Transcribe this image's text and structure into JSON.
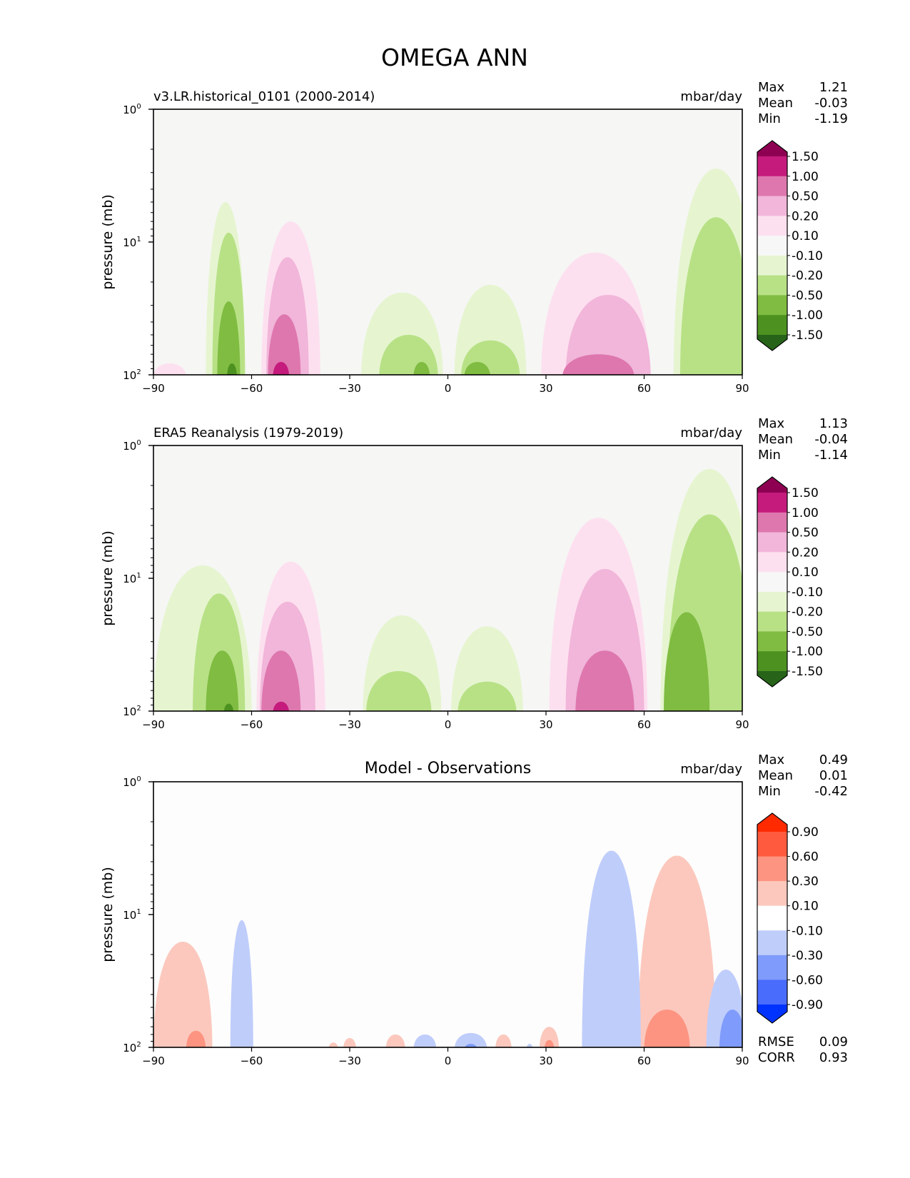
{
  "figure_title": "OMEGA ANN",
  "chart_data": [
    {
      "type": "heatmap",
      "subtype": "filled-contour",
      "panel": "model",
      "title_left": "v3.LR.historical_0101 (2000-2014)",
      "title_right": "mbar/day",
      "xlabel": "",
      "ylabel": "pressure (mb)",
      "xlim": [
        -90,
        90
      ],
      "ylim": [
        100,
        1
      ],
      "yscale": "log",
      "xticks": [
        -90,
        -60,
        -30,
        0,
        30,
        60,
        90
      ],
      "xtick_labels": [
        "−90",
        "−60",
        "−30",
        "0",
        "30",
        "60",
        "90"
      ],
      "yticks": [
        1,
        10,
        100
      ],
      "ytick_labels": [
        [
          "10",
          "0"
        ],
        [
          "10",
          "1"
        ],
        [
          "10",
          "2"
        ]
      ],
      "stats": [
        {
          "label": "Max",
          "value": "1.21"
        },
        {
          "label": "Mean",
          "value": "-0.03"
        },
        {
          "label": "Min",
          "value": "-1.19"
        }
      ],
      "background_color": "#f6f6f5",
      "colorbar": {
        "extend": "both",
        "levels": [
          "1.50",
          "1.00",
          "0.50",
          "0.20",
          "0.10",
          "-0.10",
          "-0.20",
          "-0.50",
          "-1.00",
          "-1.50"
        ],
        "colors": [
          "#8e0152",
          "#c51b7d",
          "#de77ae",
          "#f1b6da",
          "#fde0ef",
          "#f7f7f7",
          "#e6f5d0",
          "#b8e186",
          "#7fbc41",
          "#4d9221",
          "#276419"
        ]
      },
      "regions": [
        {
          "band": "-0.20",
          "color": "#e6f5d0",
          "center_lat": -68,
          "width_deg": 12,
          "top_pressure": 5
        },
        {
          "band": "-0.50",
          "color": "#b8e186",
          "center_lat": -67,
          "width_deg": 10,
          "top_pressure": 8.5
        },
        {
          "band": "-1.00",
          "color": "#7fbc41",
          "center_lat": -67,
          "width_deg": 7,
          "top_pressure": 28
        },
        {
          "band": "-1.50",
          "color": "#4d9221",
          "center_lat": -66,
          "width_deg": 3,
          "top_pressure": 82
        },
        {
          "band": "0.20",
          "color": "#fde0ef",
          "center_lat": -48,
          "width_deg": 18,
          "top_pressure": 7
        },
        {
          "band": "0.50",
          "color": "#f1b6da",
          "center_lat": -49,
          "width_deg": 13,
          "top_pressure": 13
        },
        {
          "band": "1.00",
          "color": "#de77ae",
          "center_lat": -50,
          "width_deg": 10,
          "top_pressure": 35
        },
        {
          "band": "1.50",
          "color": "#c51b7d",
          "center_lat": -51,
          "width_deg": 5,
          "top_pressure": 80
        },
        {
          "band": "0.20",
          "color": "#fde0ef",
          "center_lat": -85,
          "width_deg": 10,
          "top_pressure": 82
        },
        {
          "band": "-0.20",
          "color": "#e6f5d0",
          "center_lat": -14,
          "width_deg": 25,
          "top_pressure": 24
        },
        {
          "band": "-0.50",
          "color": "#b8e186",
          "center_lat": -12,
          "width_deg": 18,
          "top_pressure": 50
        },
        {
          "band": "-1.00",
          "color": "#7fbc41",
          "center_lat": -8,
          "width_deg": 5,
          "top_pressure": 80
        },
        {
          "band": "-0.20",
          "color": "#e6f5d0",
          "center_lat": 13,
          "width_deg": 22,
          "top_pressure": 21
        },
        {
          "band": "-0.50",
          "color": "#b8e186",
          "center_lat": 13,
          "width_deg": 18,
          "top_pressure": 55
        },
        {
          "band": "-1.00",
          "color": "#7fbc41",
          "center_lat": 9,
          "width_deg": 8,
          "top_pressure": 80
        },
        {
          "band": "0.20",
          "color": "#fde0ef",
          "center_lat": 45,
          "width_deg": 33,
          "top_pressure": 12
        },
        {
          "band": "0.50",
          "color": "#f1b6da",
          "center_lat": 49,
          "width_deg": 26,
          "top_pressure": 25
        },
        {
          "band": "1.00",
          "color": "#de77ae",
          "center_lat": 46,
          "width_deg": 22,
          "top_pressure": 70
        },
        {
          "band": "-0.20",
          "color": "#e6f5d0",
          "center_lat": 82,
          "width_deg": 26,
          "top_pressure": 2.8
        },
        {
          "band": "-0.50",
          "color": "#b8e186",
          "center_lat": 82,
          "width_deg": 22,
          "top_pressure": 6.5
        }
      ]
    },
    {
      "type": "heatmap",
      "subtype": "filled-contour",
      "panel": "observations",
      "title_left": "ERA5 Reanalysis (1979-2019)",
      "title_right": "mbar/day",
      "xlabel": "",
      "ylabel": "pressure (mb)",
      "xlim": [
        -90,
        90
      ],
      "ylim": [
        100,
        1
      ],
      "yscale": "log",
      "xticks": [
        -90,
        -60,
        -30,
        0,
        30,
        60,
        90
      ],
      "xtick_labels": [
        "−90",
        "−60",
        "−30",
        "0",
        "30",
        "60",
        "90"
      ],
      "yticks": [
        1,
        10,
        100
      ],
      "ytick_labels": [
        [
          "10",
          "0"
        ],
        [
          "10",
          "1"
        ],
        [
          "10",
          "2"
        ]
      ],
      "stats": [
        {
          "label": "Max",
          "value": "1.13"
        },
        {
          "label": "Mean",
          "value": "-0.04"
        },
        {
          "label": "Min",
          "value": "-1.14"
        }
      ],
      "background_color": "#f6f6f5",
      "colorbar": {
        "extend": "both",
        "levels": [
          "1.50",
          "1.00",
          "0.50",
          "0.20",
          "0.10",
          "-0.10",
          "-0.20",
          "-0.50",
          "-1.00",
          "-1.50"
        ],
        "colors": [
          "#8e0152",
          "#c51b7d",
          "#de77ae",
          "#f1b6da",
          "#fde0ef",
          "#f7f7f7",
          "#e6f5d0",
          "#b8e186",
          "#7fbc41",
          "#4d9221",
          "#276419"
        ]
      },
      "regions": [
        {
          "band": "-0.20",
          "color": "#e6f5d0",
          "center_lat": -75,
          "width_deg": 30,
          "top_pressure": 8
        },
        {
          "band": "-0.50",
          "color": "#b8e186",
          "center_lat": -70,
          "width_deg": 16,
          "top_pressure": 13
        },
        {
          "band": "-1.00",
          "color": "#7fbc41",
          "center_lat": -69,
          "width_deg": 10,
          "top_pressure": 35
        },
        {
          "band": "-1.50",
          "color": "#4d9221",
          "center_lat": -67,
          "width_deg": 3,
          "top_pressure": 88
        },
        {
          "band": "0.20",
          "color": "#fde0ef",
          "center_lat": -48,
          "width_deg": 21,
          "top_pressure": 7.5
        },
        {
          "band": "0.50",
          "color": "#f1b6da",
          "center_lat": -49,
          "width_deg": 17,
          "top_pressure": 15
        },
        {
          "band": "1.00",
          "color": "#de77ae",
          "center_lat": -51,
          "width_deg": 12,
          "top_pressure": 35
        },
        {
          "band": "1.50",
          "color": "#c51b7d",
          "center_lat": -51,
          "width_deg": 5,
          "top_pressure": 85
        },
        {
          "band": "-0.20",
          "color": "#e6f5d0",
          "center_lat": -14,
          "width_deg": 24,
          "top_pressure": 19
        },
        {
          "band": "-0.50",
          "color": "#b8e186",
          "center_lat": -15,
          "width_deg": 20,
          "top_pressure": 50
        },
        {
          "band": "-0.20",
          "color": "#e6f5d0",
          "center_lat": 12,
          "width_deg": 22,
          "top_pressure": 23
        },
        {
          "band": "-0.50",
          "color": "#b8e186",
          "center_lat": 12,
          "width_deg": 18,
          "top_pressure": 60
        },
        {
          "band": "0.20",
          "color": "#fde0ef",
          "center_lat": 46,
          "width_deg": 30,
          "top_pressure": 3.5
        },
        {
          "band": "0.50",
          "color": "#f1b6da",
          "center_lat": 48,
          "width_deg": 24,
          "top_pressure": 8.5
        },
        {
          "band": "1.00",
          "color": "#de77ae",
          "center_lat": 48,
          "width_deg": 18,
          "top_pressure": 35
        },
        {
          "band": "-0.20",
          "color": "#e6f5d0",
          "center_lat": 80,
          "width_deg": 30,
          "top_pressure": 1.5
        },
        {
          "band": "-0.50",
          "color": "#b8e186",
          "center_lat": 80,
          "width_deg": 26,
          "top_pressure": 3.3
        },
        {
          "band": "-1.00",
          "color": "#7fbc41",
          "center_lat": 73,
          "width_deg": 14,
          "top_pressure": 18
        }
      ]
    },
    {
      "type": "heatmap",
      "subtype": "filled-contour",
      "panel": "difference",
      "title_center": "Model - Observations",
      "title_right": "mbar/day",
      "xlabel": "",
      "ylabel": "pressure (mb)",
      "xlim": [
        -90,
        90
      ],
      "ylim": [
        100,
        1
      ],
      "yscale": "log",
      "xticks": [
        -90,
        -60,
        -30,
        0,
        30,
        60,
        90
      ],
      "xtick_labels": [
        "−90",
        "−60",
        "−30",
        "0",
        "30",
        "60",
        "90"
      ],
      "yticks": [
        1,
        10,
        100
      ],
      "ytick_labels": [
        [
          "10",
          "0"
        ],
        [
          "10",
          "1"
        ],
        [
          "10",
          "2"
        ]
      ],
      "stats": [
        {
          "label": "Max",
          "value": "0.49"
        },
        {
          "label": "Mean",
          "value": "0.01"
        },
        {
          "label": "Min",
          "value": "-0.42"
        }
      ],
      "metrics": [
        {
          "label": "RMSE",
          "value": "0.09"
        },
        {
          "label": "CORR",
          "value": "0.93"
        }
      ],
      "background_color": "#fdfdfd",
      "colorbar": {
        "extend": "both",
        "levels": [
          "0.90",
          "0.60",
          "0.30",
          "0.10",
          "-0.10",
          "-0.30",
          "-0.60",
          "-0.90"
        ],
        "colors": [
          "#ff2a00",
          "#ff5a3d",
          "#fc9481",
          "#fcc8bd",
          "#ffffff",
          "#bfcdfb",
          "#7f9bfb",
          "#4a6cfc",
          "#0033ff"
        ]
      },
      "regions": [
        {
          "band": "0.10",
          "color": "#fcc8bd",
          "center_lat": -81,
          "width_deg": 18,
          "top_pressure": 16
        },
        {
          "band": "0.30",
          "color": "#fc9481",
          "center_lat": -77,
          "width_deg": 6,
          "top_pressure": 75
        },
        {
          "band": "-0.10",
          "color": "#bfcdfb",
          "center_lat": -63,
          "width_deg": 7,
          "top_pressure": 11
        },
        {
          "band": "0.10",
          "color": "#fcc8bd",
          "center_lat": 70,
          "width_deg": 24,
          "top_pressure": 3.6
        },
        {
          "band": "0.30",
          "color": "#fc9481",
          "center_lat": 67,
          "width_deg": 14,
          "top_pressure": 52
        },
        {
          "band": "-0.10",
          "color": "#bfcdfb",
          "center_lat": 50,
          "width_deg": 18,
          "top_pressure": 3.3
        },
        {
          "band": "-0.10",
          "color": "#bfcdfb",
          "center_lat": 85,
          "width_deg": 12,
          "top_pressure": 26
        },
        {
          "band": "-0.30",
          "color": "#7f9bfb",
          "center_lat": 87,
          "width_deg": 8,
          "top_pressure": 52
        },
        {
          "band": "0.10",
          "color": "#fcc8bd",
          "center_lat": -35,
          "width_deg": 3,
          "top_pressure": 92
        },
        {
          "band": "0.10",
          "color": "#fcc8bd",
          "center_lat": -30,
          "width_deg": 4,
          "top_pressure": 85
        },
        {
          "band": "0.10",
          "color": "#fcc8bd",
          "center_lat": -16,
          "width_deg": 6,
          "top_pressure": 80
        },
        {
          "band": "-0.10",
          "color": "#bfcdfb",
          "center_lat": -7,
          "width_deg": 7,
          "top_pressure": 80
        },
        {
          "band": "-0.10",
          "color": "#bfcdfb",
          "center_lat": 7,
          "width_deg": 10,
          "top_pressure": 78
        },
        {
          "band": "-0.30",
          "color": "#7f9bfb",
          "center_lat": 7,
          "width_deg": 4,
          "top_pressure": 94
        },
        {
          "band": "0.10",
          "color": "#fcc8bd",
          "center_lat": 17,
          "width_deg": 5,
          "top_pressure": 80
        },
        {
          "band": "-0.10",
          "color": "#bfcdfb",
          "center_lat": 25,
          "width_deg": 2,
          "top_pressure": 94
        },
        {
          "band": "0.10",
          "color": "#fcc8bd",
          "center_lat": 31,
          "width_deg": 6,
          "top_pressure": 70
        },
        {
          "band": "0.30",
          "color": "#fc9481",
          "center_lat": 31,
          "width_deg": 3,
          "top_pressure": 88
        }
      ]
    }
  ]
}
